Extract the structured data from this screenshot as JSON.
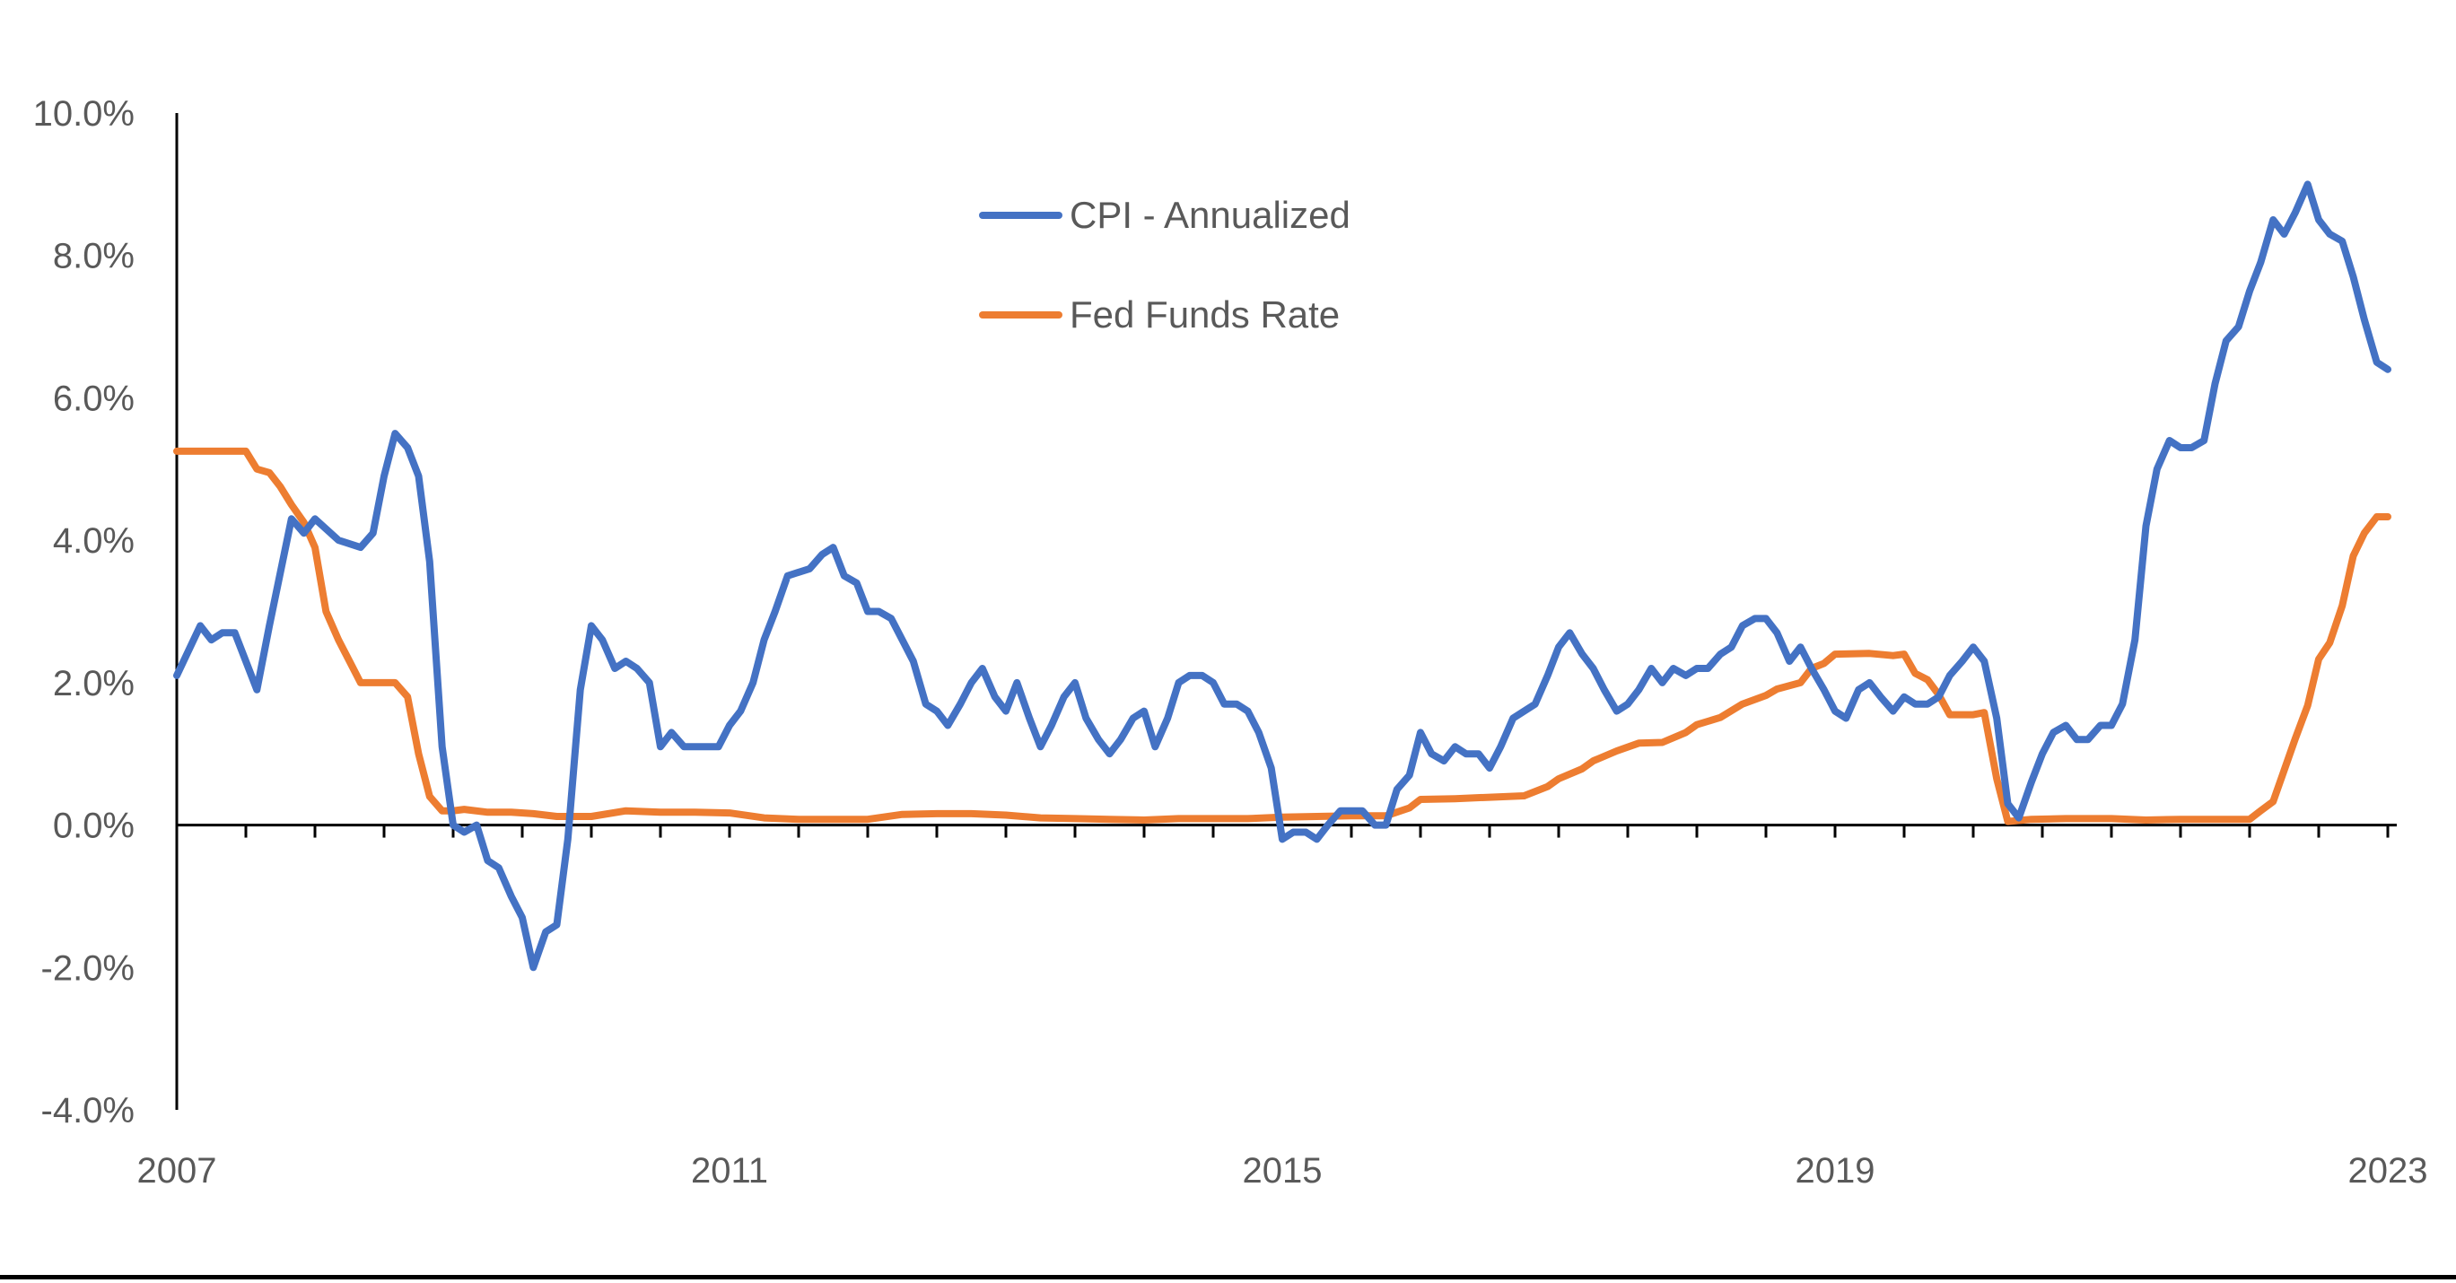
{
  "chart_data": {
    "type": "line",
    "title": "",
    "xlabel": "",
    "ylabel": "",
    "x_tick_labels": [
      "2007",
      "2011",
      "2015",
      "2019",
      "2023"
    ],
    "y_tick_labels": [
      "10.0%",
      "8.0%",
      "6.0%",
      "4.0%",
      "2.0%",
      "0.0%",
      "-2.0%",
      "-4.0%"
    ],
    "ylim": [
      -4,
      10
    ],
    "xlim": [
      2007.0,
      2023.0
    ],
    "y_unit": "%",
    "grid": false,
    "legend_position": "top-center",
    "colors": {
      "cpi": "#4472C4",
      "fed": "#ED7D31"
    },
    "series": [
      {
        "name": "CPI - Annualized",
        "key": "cpi",
        "points": [
          [
            2007.0,
            2.1
          ],
          [
            2007.17,
            2.8
          ],
          [
            2007.25,
            2.6
          ],
          [
            2007.33,
            2.7
          ],
          [
            2007.42,
            2.7
          ],
          [
            2007.58,
            1.9
          ],
          [
            2007.67,
            2.8
          ],
          [
            2007.83,
            4.3
          ],
          [
            2007.92,
            4.1
          ],
          [
            2008.0,
            4.3
          ],
          [
            2008.17,
            4.0
          ],
          [
            2008.33,
            3.9
          ],
          [
            2008.42,
            4.1
          ],
          [
            2008.5,
            4.9
          ],
          [
            2008.58,
            5.5
          ],
          [
            2008.67,
            5.3
          ],
          [
            2008.75,
            4.9
          ],
          [
            2008.83,
            3.7
          ],
          [
            2008.92,
            1.1
          ],
          [
            2009.0,
            0.0
          ],
          [
            2009.08,
            -0.1
          ],
          [
            2009.17,
            0.0
          ],
          [
            2009.25,
            -0.5
          ],
          [
            2009.33,
            -0.6
          ],
          [
            2009.42,
            -1.0
          ],
          [
            2009.5,
            -1.3
          ],
          [
            2009.58,
            -2.0
          ],
          [
            2009.67,
            -1.5
          ],
          [
            2009.75,
            -1.4
          ],
          [
            2009.83,
            -0.2
          ],
          [
            2009.92,
            1.9
          ],
          [
            2010.0,
            2.8
          ],
          [
            2010.08,
            2.6
          ],
          [
            2010.17,
            2.2
          ],
          [
            2010.25,
            2.3
          ],
          [
            2010.33,
            2.2
          ],
          [
            2010.42,
            2.0
          ],
          [
            2010.5,
            1.1
          ],
          [
            2010.58,
            1.3
          ],
          [
            2010.67,
            1.1
          ],
          [
            2010.83,
            1.1
          ],
          [
            2010.92,
            1.1
          ],
          [
            2011.0,
            1.4
          ],
          [
            2011.08,
            1.6
          ],
          [
            2011.17,
            2.0
          ],
          [
            2011.25,
            2.6
          ],
          [
            2011.33,
            3.0
          ],
          [
            2011.42,
            3.5
          ],
          [
            2011.58,
            3.6
          ],
          [
            2011.67,
            3.8
          ],
          [
            2011.75,
            3.9
          ],
          [
            2011.83,
            3.5
          ],
          [
            2011.92,
            3.4
          ],
          [
            2012.0,
            3.0
          ],
          [
            2012.08,
            3.0
          ],
          [
            2012.17,
            2.9
          ],
          [
            2012.25,
            2.6
          ],
          [
            2012.33,
            2.3
          ],
          [
            2012.42,
            1.7
          ],
          [
            2012.5,
            1.6
          ],
          [
            2012.58,
            1.4
          ],
          [
            2012.67,
            1.7
          ],
          [
            2012.75,
            2.0
          ],
          [
            2012.83,
            2.2
          ],
          [
            2012.92,
            1.8
          ],
          [
            2013.0,
            1.6
          ],
          [
            2013.08,
            2.0
          ],
          [
            2013.17,
            1.5
          ],
          [
            2013.25,
            1.1
          ],
          [
            2013.33,
            1.4
          ],
          [
            2013.42,
            1.8
          ],
          [
            2013.5,
            2.0
          ],
          [
            2013.58,
            1.5
          ],
          [
            2013.67,
            1.2
          ],
          [
            2013.75,
            1.0
          ],
          [
            2013.83,
            1.2
          ],
          [
            2013.92,
            1.5
          ],
          [
            2014.0,
            1.6
          ],
          [
            2014.08,
            1.1
          ],
          [
            2014.17,
            1.5
          ],
          [
            2014.25,
            2.0
          ],
          [
            2014.33,
            2.1
          ],
          [
            2014.42,
            2.1
          ],
          [
            2014.5,
            2.0
          ],
          [
            2014.58,
            1.7
          ],
          [
            2014.67,
            1.7
          ],
          [
            2014.75,
            1.6
          ],
          [
            2014.83,
            1.3
          ],
          [
            2014.92,
            0.8
          ],
          [
            2015.0,
            -0.2
          ],
          [
            2015.08,
            -0.1
          ],
          [
            2015.17,
            -0.1
          ],
          [
            2015.25,
            -0.2
          ],
          [
            2015.33,
            0.0
          ],
          [
            2015.42,
            0.2
          ],
          [
            2015.5,
            0.2
          ],
          [
            2015.58,
            0.2
          ],
          [
            2015.67,
            0.0
          ],
          [
            2015.75,
            0.0
          ],
          [
            2015.83,
            0.5
          ],
          [
            2015.92,
            0.7
          ],
          [
            2016.0,
            1.3
          ],
          [
            2016.08,
            1.0
          ],
          [
            2016.17,
            0.9
          ],
          [
            2016.25,
            1.1
          ],
          [
            2016.33,
            1.0
          ],
          [
            2016.42,
            1.0
          ],
          [
            2016.5,
            0.8
          ],
          [
            2016.58,
            1.1
          ],
          [
            2016.67,
            1.5
          ],
          [
            2016.75,
            1.6
          ],
          [
            2016.83,
            1.7
          ],
          [
            2016.92,
            2.1
          ],
          [
            2017.0,
            2.5
          ],
          [
            2017.08,
            2.7
          ],
          [
            2017.17,
            2.4
          ],
          [
            2017.25,
            2.2
          ],
          [
            2017.33,
            1.9
          ],
          [
            2017.42,
            1.6
          ],
          [
            2017.5,
            1.7
          ],
          [
            2017.58,
            1.9
          ],
          [
            2017.67,
            2.2
          ],
          [
            2017.75,
            2.0
          ],
          [
            2017.83,
            2.2
          ],
          [
            2017.92,
            2.1
          ],
          [
            2018.0,
            2.2
          ],
          [
            2018.08,
            2.2
          ],
          [
            2018.17,
            2.4
          ],
          [
            2018.25,
            2.5
          ],
          [
            2018.33,
            2.8
          ],
          [
            2018.42,
            2.9
          ],
          [
            2018.5,
            2.9
          ],
          [
            2018.58,
            2.7
          ],
          [
            2018.67,
            2.3
          ],
          [
            2018.75,
            2.5
          ],
          [
            2018.83,
            2.2
          ],
          [
            2018.92,
            1.9
          ],
          [
            2019.0,
            1.6
          ],
          [
            2019.08,
            1.5
          ],
          [
            2019.17,
            1.9
          ],
          [
            2019.25,
            2.0
          ],
          [
            2019.33,
            1.8
          ],
          [
            2019.42,
            1.6
          ],
          [
            2019.5,
            1.8
          ],
          [
            2019.58,
            1.7
          ],
          [
            2019.67,
            1.7
          ],
          [
            2019.75,
            1.8
          ],
          [
            2019.83,
            2.1
          ],
          [
            2019.92,
            2.3
          ],
          [
            2020.0,
            2.5
          ],
          [
            2020.08,
            2.3
          ],
          [
            2020.17,
            1.5
          ],
          [
            2020.25,
            0.3
          ],
          [
            2020.33,
            0.1
          ],
          [
            2020.42,
            0.6
          ],
          [
            2020.5,
            1.0
          ],
          [
            2020.58,
            1.3
          ],
          [
            2020.67,
            1.4
          ],
          [
            2020.75,
            1.2
          ],
          [
            2020.83,
            1.2
          ],
          [
            2020.92,
            1.4
          ],
          [
            2021.0,
            1.4
          ],
          [
            2021.08,
            1.7
          ],
          [
            2021.17,
            2.6
          ],
          [
            2021.25,
            4.2
          ],
          [
            2021.33,
            5.0
          ],
          [
            2021.42,
            5.4
          ],
          [
            2021.5,
            5.3
          ],
          [
            2021.58,
            5.3
          ],
          [
            2021.67,
            5.4
          ],
          [
            2021.75,
            6.2
          ],
          [
            2021.83,
            6.8
          ],
          [
            2021.92,
            7.0
          ],
          [
            2022.0,
            7.5
          ],
          [
            2022.08,
            7.9
          ],
          [
            2022.17,
            8.5
          ],
          [
            2022.25,
            8.3
          ],
          [
            2022.33,
            8.6
          ],
          [
            2022.42,
            9.0
          ],
          [
            2022.5,
            8.5
          ],
          [
            2022.58,
            8.3
          ],
          [
            2022.67,
            8.2
          ],
          [
            2022.75,
            7.7
          ],
          [
            2022.83,
            7.1
          ],
          [
            2022.92,
            6.5
          ],
          [
            2023.0,
            6.4
          ]
        ]
      },
      {
        "name": "Fed Funds Rate",
        "key": "fed",
        "points": [
          [
            2007.0,
            5.25
          ],
          [
            2007.25,
            5.25
          ],
          [
            2007.5,
            5.25
          ],
          [
            2007.58,
            5.0
          ],
          [
            2007.67,
            4.95
          ],
          [
            2007.75,
            4.75
          ],
          [
            2007.83,
            4.5
          ],
          [
            2007.92,
            4.25
          ],
          [
            2008.0,
            3.9
          ],
          [
            2008.08,
            3.0
          ],
          [
            2008.17,
            2.6
          ],
          [
            2008.25,
            2.3
          ],
          [
            2008.33,
            2.0
          ],
          [
            2008.5,
            2.0
          ],
          [
            2008.58,
            2.0
          ],
          [
            2008.67,
            1.8
          ],
          [
            2008.75,
            1.0
          ],
          [
            2008.83,
            0.4
          ],
          [
            2008.92,
            0.2
          ],
          [
            2009.0,
            0.2
          ],
          [
            2009.08,
            0.22
          ],
          [
            2009.25,
            0.18
          ],
          [
            2009.42,
            0.18
          ],
          [
            2009.58,
            0.16
          ],
          [
            2009.75,
            0.12
          ],
          [
            2010.0,
            0.12
          ],
          [
            2010.25,
            0.2
          ],
          [
            2010.5,
            0.18
          ],
          [
            2010.75,
            0.18
          ],
          [
            2011.0,
            0.17
          ],
          [
            2011.25,
            0.1
          ],
          [
            2011.5,
            0.08
          ],
          [
            2011.75,
            0.08
          ],
          [
            2012.0,
            0.08
          ],
          [
            2012.25,
            0.15
          ],
          [
            2012.5,
            0.16
          ],
          [
            2012.75,
            0.16
          ],
          [
            2013.0,
            0.14
          ],
          [
            2013.25,
            0.1
          ],
          [
            2013.5,
            0.09
          ],
          [
            2013.75,
            0.08
          ],
          [
            2014.0,
            0.07
          ],
          [
            2014.25,
            0.09
          ],
          [
            2014.5,
            0.09
          ],
          [
            2014.75,
            0.09
          ],
          [
            2015.0,
            0.11
          ],
          [
            2015.25,
            0.12
          ],
          [
            2015.5,
            0.13
          ],
          [
            2015.75,
            0.13
          ],
          [
            2015.92,
            0.24
          ],
          [
            2016.0,
            0.36
          ],
          [
            2016.25,
            0.37
          ],
          [
            2016.5,
            0.39
          ],
          [
            2016.75,
            0.41
          ],
          [
            2016.92,
            0.54
          ],
          [
            2017.0,
            0.65
          ],
          [
            2017.17,
            0.79
          ],
          [
            2017.25,
            0.9
          ],
          [
            2017.42,
            1.04
          ],
          [
            2017.58,
            1.15
          ],
          [
            2017.75,
            1.16
          ],
          [
            2017.92,
            1.3
          ],
          [
            2018.0,
            1.41
          ],
          [
            2018.17,
            1.51
          ],
          [
            2018.33,
            1.7
          ],
          [
            2018.5,
            1.82
          ],
          [
            2018.58,
            1.91
          ],
          [
            2018.75,
            2.0
          ],
          [
            2018.83,
            2.2
          ],
          [
            2018.92,
            2.27
          ],
          [
            2019.0,
            2.4
          ],
          [
            2019.25,
            2.41
          ],
          [
            2019.42,
            2.38
          ],
          [
            2019.5,
            2.4
          ],
          [
            2019.58,
            2.13
          ],
          [
            2019.67,
            2.04
          ],
          [
            2019.75,
            1.83
          ],
          [
            2019.83,
            1.55
          ],
          [
            2020.0,
            1.55
          ],
          [
            2020.08,
            1.58
          ],
          [
            2020.17,
            0.65
          ],
          [
            2020.25,
            0.05
          ],
          [
            2020.42,
            0.08
          ],
          [
            2020.67,
            0.09
          ],
          [
            2021.0,
            0.09
          ],
          [
            2021.25,
            0.07
          ],
          [
            2021.5,
            0.08
          ],
          [
            2021.75,
            0.08
          ],
          [
            2022.0,
            0.08
          ],
          [
            2022.08,
            0.2
          ],
          [
            2022.17,
            0.33
          ],
          [
            2022.25,
            0.77
          ],
          [
            2022.33,
            1.21
          ],
          [
            2022.42,
            1.68
          ],
          [
            2022.5,
            2.33
          ],
          [
            2022.58,
            2.56
          ],
          [
            2022.67,
            3.08
          ],
          [
            2022.75,
            3.78
          ],
          [
            2022.83,
            4.1
          ],
          [
            2022.92,
            4.33
          ],
          [
            2023.0,
            4.33
          ]
        ]
      }
    ]
  }
}
